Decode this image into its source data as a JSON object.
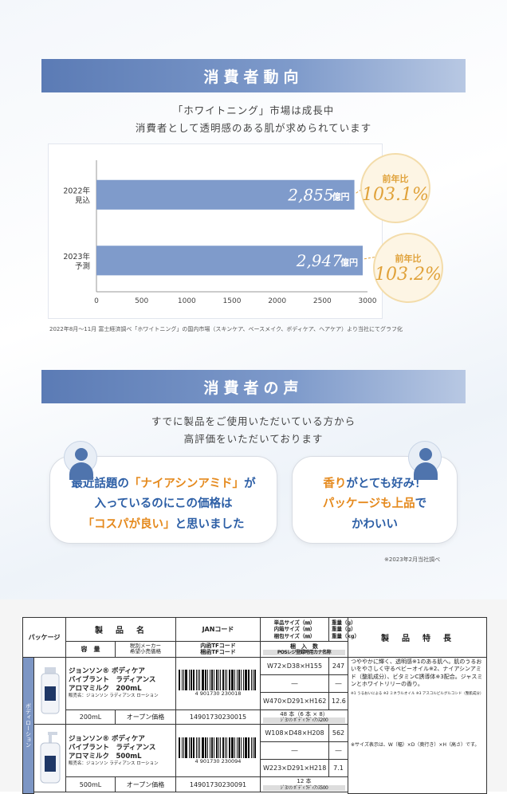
{
  "section1": {
    "title": "消費者動向",
    "lead1": "「ホワイトニング」市場は成長中",
    "lead2": "消費者として透明感のある肌が求められています"
  },
  "chart_data": {
    "type": "bar",
    "orientation": "horizontal",
    "categories": [
      "2022年\n見込",
      "2023年\n予測"
    ],
    "category_lines": [
      [
        "2022年",
        "見込"
      ],
      [
        "2023年",
        "予測"
      ]
    ],
    "values": [
      2855,
      2947
    ],
    "value_labels": [
      "2,855",
      "2,947"
    ],
    "value_unit": "億円",
    "xlim": [
      0,
      3000
    ],
    "xticks": [
      0,
      500,
      1000,
      1500,
      2000,
      2500,
      3000
    ],
    "bar_color": "#7f9bcb",
    "yoy": [
      {
        "label": "前年比",
        "value": "103.1%"
      },
      {
        "label": "前年比",
        "value": "103.2%"
      }
    ],
    "source": "2022年8月～11月 富士経済調べ「ホワイトニング」の国内市場（スキンケア、ベースメイク、ボディケア、ヘアケア）より当社にてグラフ化"
  },
  "section2": {
    "title": "消費者の声",
    "lead1": "すでに製品をご使用いただいている方から",
    "lead2": "高評価をいただいております",
    "voice_left": {
      "line1a": "最近話題の",
      "line1b": "「ナイアシンアミド」",
      "line1c": "が",
      "line2": "入っているのにこの価格は",
      "line3a": "「コスパが良い」",
      "line3b": "と思いました"
    },
    "voice_right": {
      "line1a": "香り",
      "line1b": "がとても好み！",
      "line2a": "パッケージも上品",
      "line2b": "で",
      "line3": "かわいい"
    },
    "survey_note": "※2023年2月当社調べ"
  },
  "colors": {
    "accent": "#5b7bb5",
    "highlight": "#e58a1e",
    "text_blue": "#2d5fa6",
    "gold": "#e0a23a"
  },
  "table": {
    "h_package": "パッケージ",
    "h_product_name": "製　品　名",
    "h_jan": "JANコード",
    "h_single_size": "単品サイズ（㎜）",
    "h_inner_size": "内箱サイズ（㎜）",
    "h_outer_size": "梱包サイズ（㎜）",
    "h_weight1": "重量（g）",
    "h_weight2": "重量（g）",
    "h_weight3": "重量（kg）",
    "h_features": "製　品　特　長",
    "h_capacity": "容　量",
    "h_price_a": "税別メーカー",
    "h_price_b": "希望小売価格",
    "h_inner_tf": "内函TFコード",
    "h_outer_tf": "梱函TFコード",
    "h_count": "梱　入　数",
    "h_pos": "POSレジ登録時用カナ名称",
    "category": "ボディローション",
    "products": [
      {
        "name1": "ジョンソン® ボディケア",
        "name2": "バイブラント　ラディアンス",
        "name3": "アロマミルク　200mL",
        "sub": "販売名：ジョンソン ラディアンス ローション",
        "jan": "4 901730 230018",
        "single": "W72×D38×H155",
        "w1": "247",
        "inner": "―",
        "w2": "―",
        "outer": "W470×D291×H162",
        "w3": "12.6",
        "count": "48 本（6 本 × 8）",
        "pos": "ｼﾞﾖﾝｿﾝ ﾎﾞﾃﾞｨ ﾗﾃﾞｨｱﾝｽ200",
        "capacity": "200mL",
        "price": "オープン価格",
        "tf": "14901730230015"
      },
      {
        "name1": "ジョンソン® ボディケア",
        "name2": "バイブラント　ラディアンス",
        "name3": "アロマミルク　500mL",
        "sub": "販売名：ジョンソン ラディアンス ローション",
        "jan": "4 901730 230094",
        "single": "W108×D48×H208",
        "w1": "562",
        "inner": "―",
        "w2": "―",
        "outer": "W223×D291×H218",
        "w3": "7.1",
        "count": "12 本",
        "pos": "ｼﾞﾖﾝｿﾝ ﾎﾞﾃﾞｨ ﾗﾃﾞｨｱﾝｽ500",
        "capacity": "500mL",
        "price": "オープン価格",
        "tf": "14901730230091"
      }
    ],
    "feature_text": "つややかに輝く、透明感※1のある肌へ。肌のうるおいをやさしく守るベビーオイル※2、ナイアシンアミド（整肌成分）、ビタミンC誘導体※3配合。ジャスミンとホワイトリリーの香り。",
    "feature_notes": "※1 うるおいによる ※2 ミネラルオイル ※3 アスコルビルグルコシド（整肌成分）",
    "size_note": "※サイズ表示は、W（幅）×D（奥行き）×H（高さ）です。"
  }
}
